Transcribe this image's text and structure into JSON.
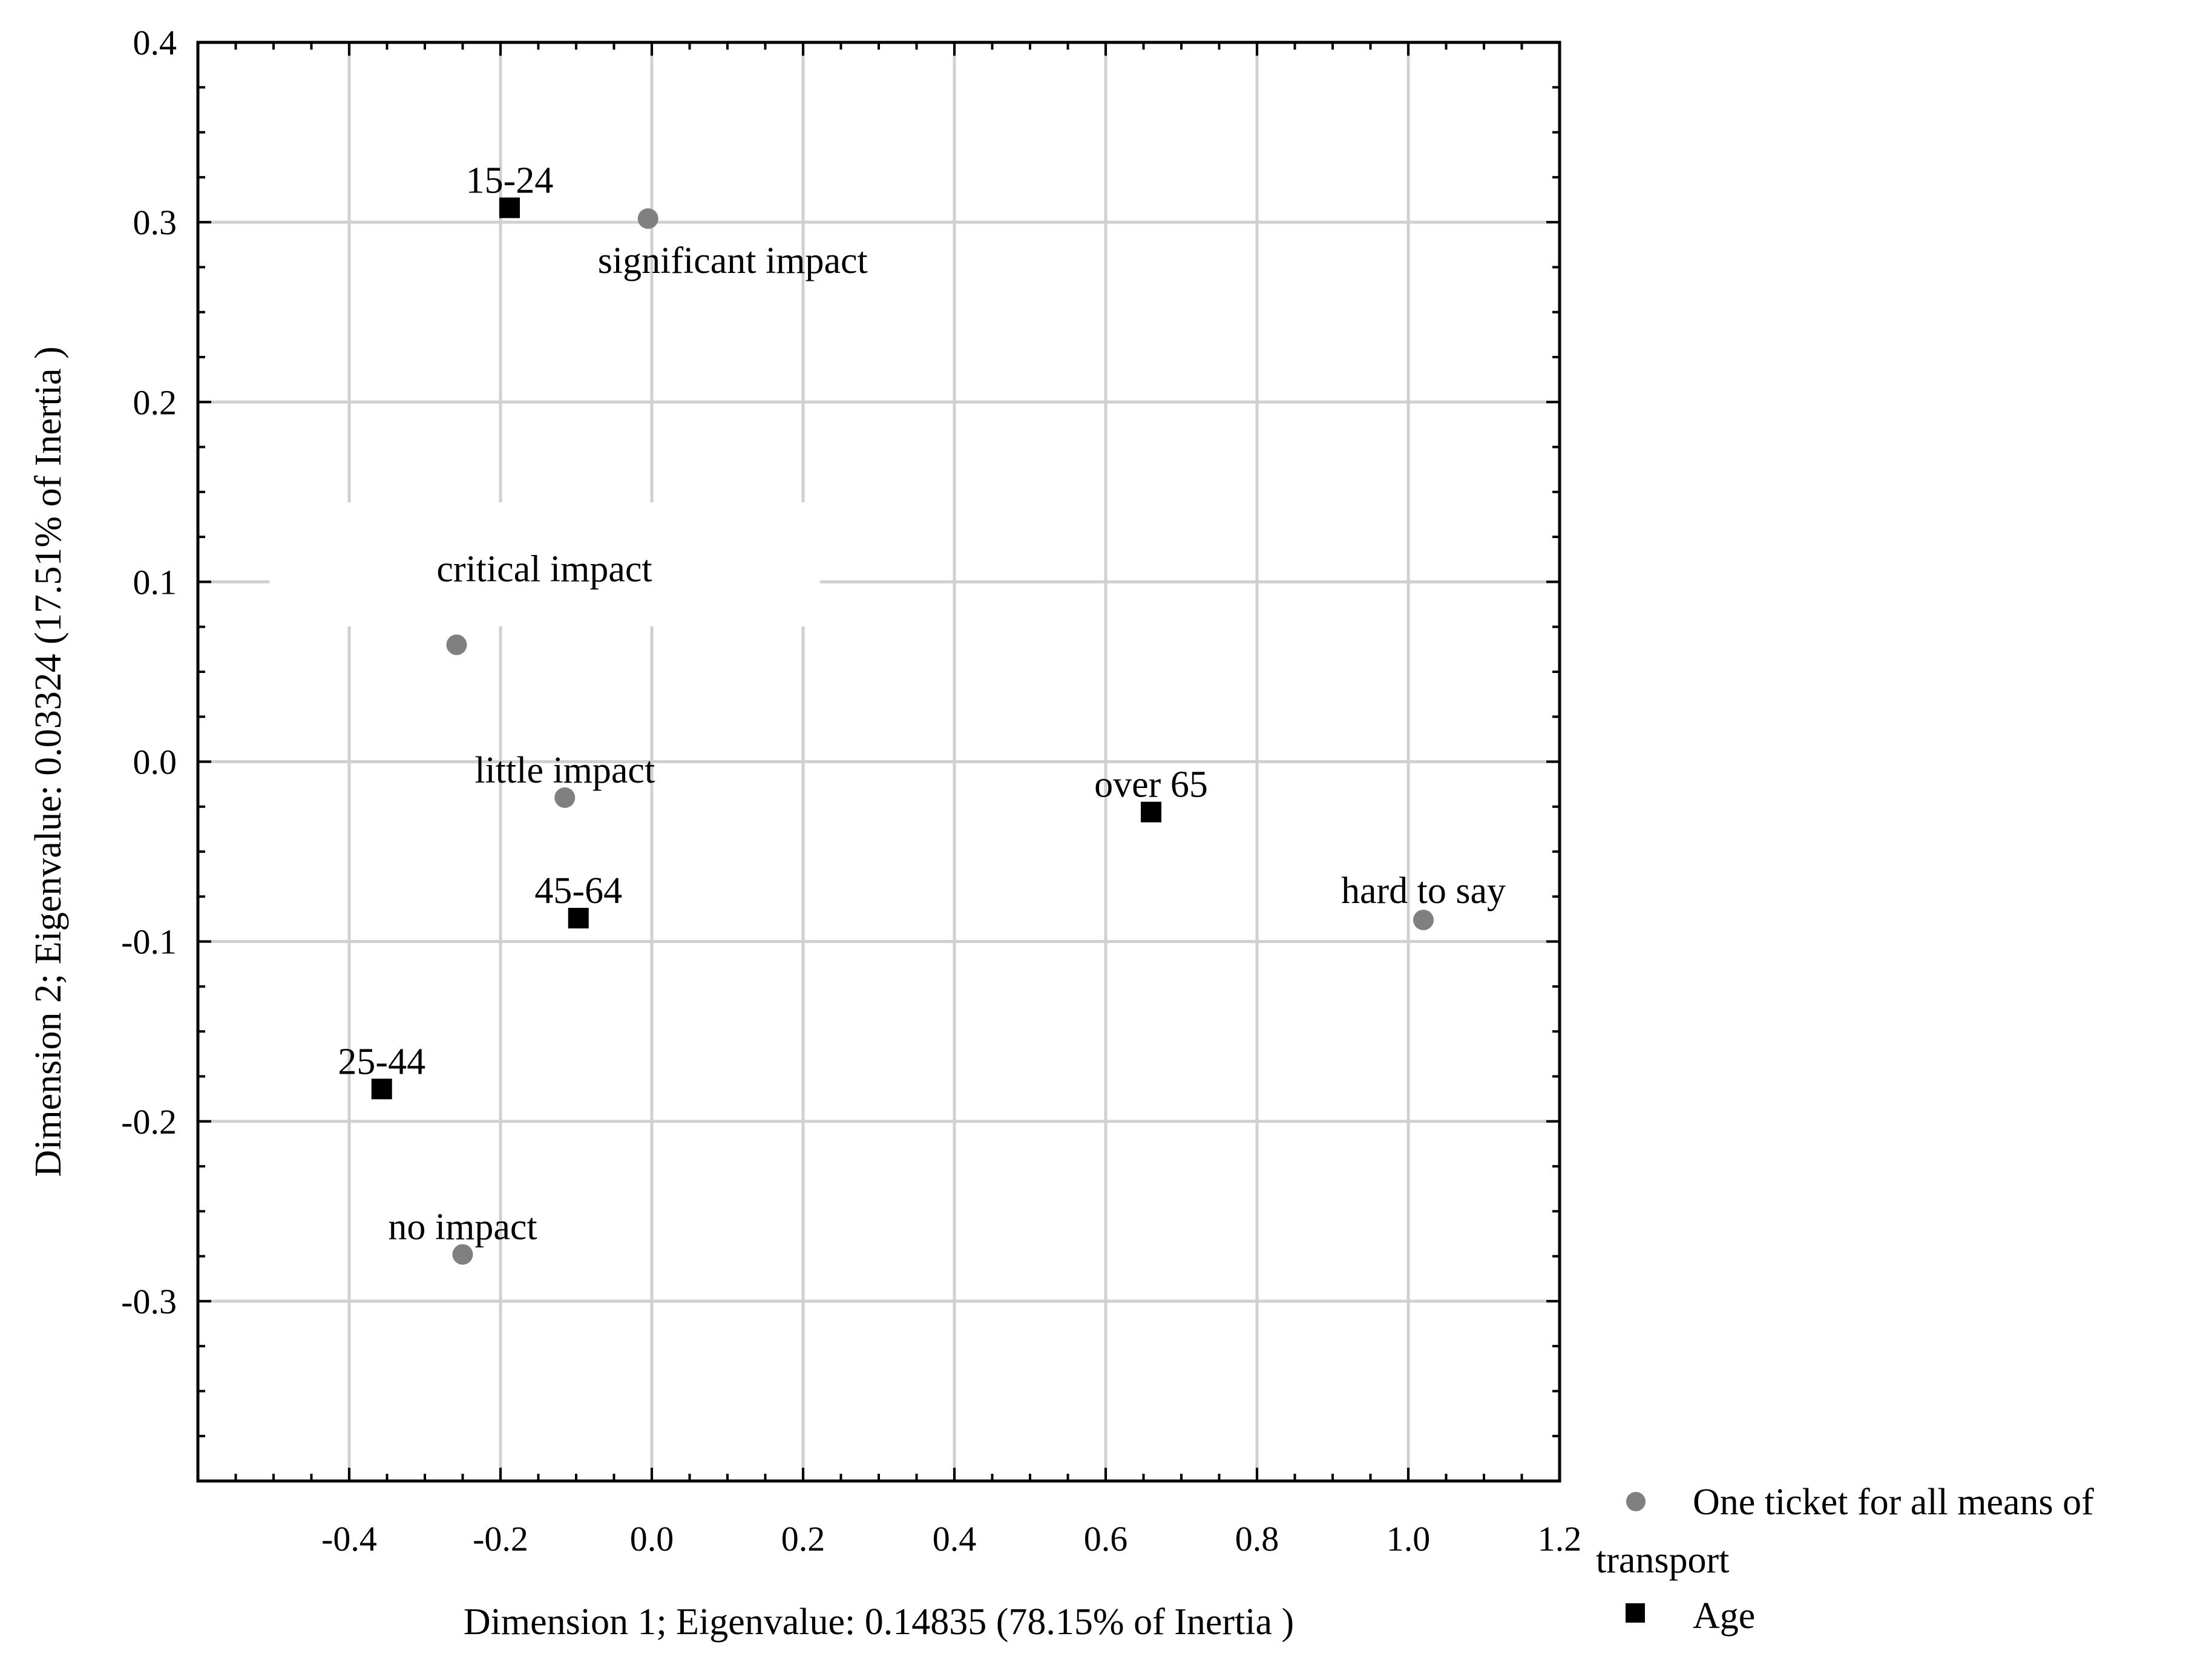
{
  "chart_data": {
    "type": "scatter",
    "xlabel": "Dimension 1; Eigenvalue:  0.14835 (78.15% of Inertia )",
    "ylabel": "Dimension 2; Eigenvalue:  0.03324 (17.51% of Inertia )",
    "xlim": [
      -0.6,
      1.2
    ],
    "ylim": [
      -0.4,
      0.4
    ],
    "xticks": [
      "-0.4",
      "-0.2",
      "0.0",
      "0.2",
      "0.4",
      "0.6",
      "0.8",
      "1.0",
      "1.2"
    ],
    "xtick_values": [
      -0.4,
      -0.2,
      0.0,
      0.2,
      0.4,
      0.6,
      0.8,
      1.0,
      1.2
    ],
    "yticks": [
      "0.4",
      "0.3",
      "0.2",
      "0.1",
      "0.0",
      "-0.1",
      "-0.2",
      "-0.3"
    ],
    "ytick_values": [
      0.4,
      0.3,
      0.2,
      0.1,
      0.0,
      -0.1,
      -0.2,
      -0.3
    ],
    "grid": true,
    "legend_position": "bottom-right, outside plot",
    "series": [
      {
        "name": "One ticket for all means of transport",
        "marker": "circle",
        "color": "#808080",
        "points": [
          {
            "label": "significant impact",
            "x": -0.005,
            "y": 0.302
          },
          {
            "label": "critical impact",
            "x": -0.258,
            "y": 0.065
          },
          {
            "label": "little impact",
            "x": -0.115,
            "y": -0.02
          },
          {
            "label": "hard to say",
            "x": 1.02,
            "y": -0.088
          },
          {
            "label": "no impact",
            "x": -0.25,
            "y": -0.274
          }
        ]
      },
      {
        "name": "Age",
        "marker": "square",
        "color": "#000000",
        "points": [
          {
            "label": "15-24",
            "x": -0.188,
            "y": 0.308
          },
          {
            "label": "over 65",
            "x": 0.66,
            "y": -0.028
          },
          {
            "label": "45-64",
            "x": -0.097,
            "y": -0.087
          },
          {
            "label": "25-44",
            "x": -0.357,
            "y": -0.182
          }
        ]
      }
    ]
  }
}
